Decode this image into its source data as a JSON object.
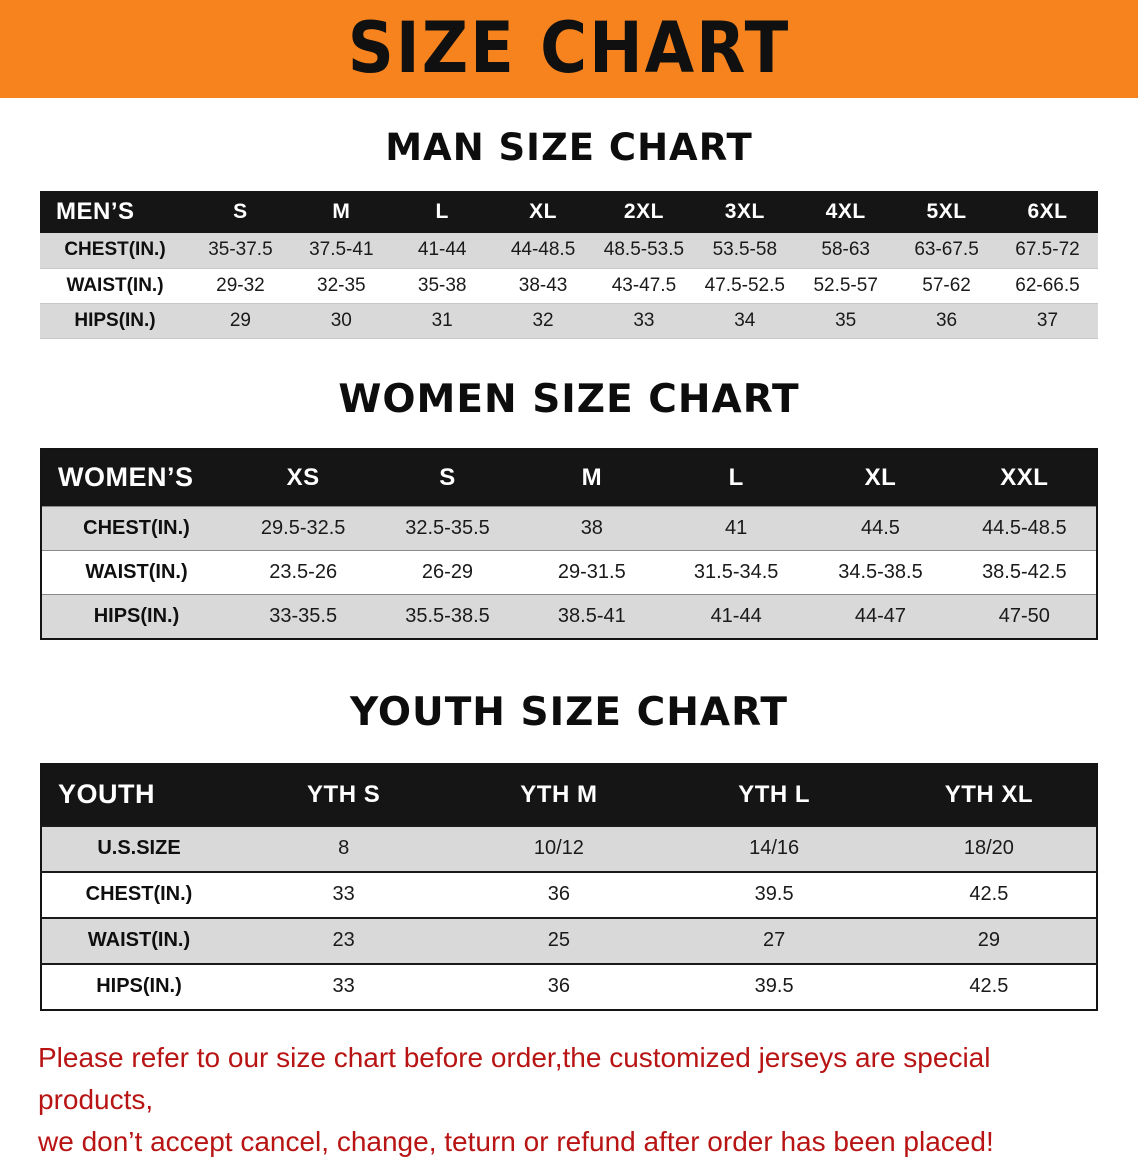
{
  "banner": {
    "title": "SIZE CHART"
  },
  "sections": [
    {
      "heading": "MAN SIZE CHART",
      "table": {
        "header_label": "MEN’S",
        "columns": [
          "S",
          "M",
          "L",
          "XL",
          "2XL",
          "3XL",
          "4XL",
          "5XL",
          "6XL"
        ],
        "rows": [
          {
            "label": "CHEST(IN.)",
            "values": [
              "35-37.5",
              "37.5-41",
              "41-44",
              "44-48.5",
              "48.5-53.5",
              "53.5-58",
              "58-63",
              "63-67.5",
              "67.5-72"
            ]
          },
          {
            "label": "WAIST(IN.)",
            "values": [
              "29-32",
              "32-35",
              "35-38",
              "38-43",
              "43-47.5",
              "47.5-52.5",
              "52.5-57",
              "57-62",
              "62-66.5"
            ]
          },
          {
            "label": "HIPS(IN.)",
            "values": [
              "29",
              "30",
              "31",
              "32",
              "33",
              "34",
              "35",
              "36",
              "37"
            ]
          }
        ]
      }
    },
    {
      "heading": "WOMEN SIZE CHART",
      "table": {
        "header_label": "WOMEN’S",
        "columns": [
          "XS",
          "S",
          "M",
          "L",
          "XL",
          "XXL"
        ],
        "rows": [
          {
            "label": "CHEST(IN.)",
            "values": [
              "29.5-32.5",
              "32.5-35.5",
              "38",
              "41",
              "44.5",
              "44.5-48.5"
            ]
          },
          {
            "label": "WAIST(IN.)",
            "values": [
              "23.5-26",
              "26-29",
              "29-31.5",
              "31.5-34.5",
              "34.5-38.5",
              "38.5-42.5"
            ]
          },
          {
            "label": "HIPS(IN.)",
            "values": [
              "33-35.5",
              "35.5-38.5",
              "38.5-41",
              "41-44",
              "44-47",
              "47-50"
            ]
          }
        ]
      }
    },
    {
      "heading": "YOUTH SIZE CHART",
      "table": {
        "header_label": "YOUTH",
        "columns": [
          "YTH S",
          "YTH M",
          "YTH L",
          "YTH XL"
        ],
        "rows": [
          {
            "label": "U.S.SIZE",
            "values": [
              "8",
              "10/12",
              "14/16",
              "18/20"
            ]
          },
          {
            "label": "CHEST(IN.)",
            "values": [
              "33",
              "36",
              "39.5",
              "42.5"
            ]
          },
          {
            "label": "WAIST(IN.)",
            "values": [
              "23",
              "25",
              "27",
              "29"
            ]
          },
          {
            "label": "HIPS(IN.)",
            "values": [
              "33",
              "36",
              "39.5",
              "42.5"
            ]
          }
        ]
      }
    }
  ],
  "footer": {
    "lines": [
      "Please refer to our size chart before order,the customized jerseys are special products,",
      "we don’t accept cancel, change, teturn or refund after order has been placed!"
    ]
  },
  "colors": {
    "banner_bg": "#f6831e",
    "header_bg": "#151515",
    "row_alt_bg": "#d9d9d9",
    "footer_text": "#b81414"
  }
}
